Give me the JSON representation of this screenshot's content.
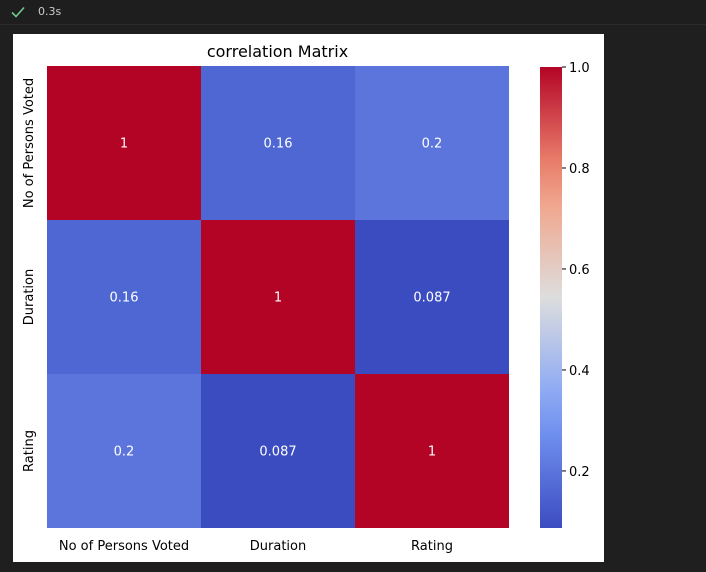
{
  "cell_status": {
    "icon": "checkmark-icon",
    "color": "#73c991",
    "time": "0.3s"
  },
  "chart_data": {
    "type": "heatmap",
    "title": "correlation Matrix",
    "colormap": "coolwarm",
    "rows": [
      "No of Persons Voted",
      "Duration",
      "Rating"
    ],
    "cols": [
      "No of Persons Voted",
      "Duration",
      "Rating"
    ],
    "values": [
      [
        1,
        0.16,
        0.2
      ],
      [
        0.16,
        1,
        0.087
      ],
      [
        0.2,
        0.087,
        1
      ]
    ],
    "annotations": [
      [
        "1",
        "0.16",
        "0.2"
      ],
      [
        "0.16",
        "1",
        "0.087"
      ],
      [
        "0.2",
        "0.087",
        "1"
      ]
    ],
    "colorbar": {
      "min": 0.087,
      "max": 1.0,
      "ticks": [
        0.2,
        0.4,
        0.6,
        0.8,
        1.0
      ],
      "tick_labels": [
        "0.2",
        "0.4",
        "0.6",
        "0.8",
        "1.0"
      ]
    }
  }
}
